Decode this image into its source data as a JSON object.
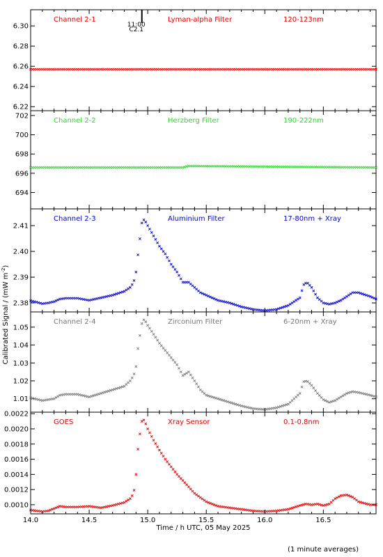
{
  "chart_data": {
    "type": "scatter",
    "xlabel": "Time / h UTC, 05 May 2025",
    "ylabel": "Calibrated Signal / (mW m",
    "ylabel_sup": "-2",
    "ylabel_close": ")",
    "footnote": "(1 minute averages)",
    "xlim": [
      14.0,
      16.95
    ],
    "xticks": [
      {
        "v": 14.0,
        "t": "14.0"
      },
      {
        "v": 14.5,
        "t": "14.5"
      },
      {
        "v": 15.0,
        "t": "15.0"
      },
      {
        "v": 15.5,
        "t": "15.5"
      },
      {
        "v": 16.0,
        "t": "16.0"
      },
      {
        "v": 16.5,
        "t": "16.5"
      }
    ],
    "time_marker": {
      "x": 14.95,
      "label1": "11:00",
      "label2": "C2.1"
    },
    "panels": [
      {
        "channel": "Channel 2-1",
        "filter": "Lyman-alpha Filter",
        "band": "120-123nm",
        "color": "#e00000",
        "ylim": [
          6.216,
          6.316
        ],
        "yticks": [
          {
            "v": 6.22,
            "t": "6.22"
          },
          {
            "v": 6.24,
            "t": "6.24"
          },
          {
            "v": 6.26,
            "t": "6.26"
          },
          {
            "v": 6.28,
            "t": "6.28"
          },
          {
            "v": 6.3,
            "t": "6.30"
          }
        ],
        "series": {
          "x": [
            14.0,
            16.95
          ],
          "y": [
            6.257,
            6.257
          ]
        }
      },
      {
        "channel": "Channel 2-2",
        "filter": "Herzberg Filter",
        "band": "190-222nm",
        "color": "#22dd22",
        "ylim": [
          692.3,
          702.5
        ],
        "yticks": [
          {
            "v": 694,
            "t": "694"
          },
          {
            "v": 696,
            "t": "696"
          },
          {
            "v": 698,
            "t": "698"
          },
          {
            "v": 700,
            "t": "700"
          },
          {
            "v": 702,
            "t": "702"
          }
        ],
        "series": {
          "x": [
            14.0,
            14.25,
            15.3,
            15.35,
            16.95
          ],
          "y": [
            696.6,
            696.6,
            696.6,
            696.75,
            696.6
          ]
        }
      },
      {
        "channel": "Channel 2-3",
        "filter": "Aluminium Filter",
        "band": "17-80nm + Xray",
        "color": "#0000cc",
        "ylim": [
          2.3765,
          2.4165
        ],
        "yticks": [
          {
            "v": 2.38,
            "t": "2.38"
          },
          {
            "v": 2.39,
            "t": "2.39"
          },
          {
            "v": 2.4,
            "t": "2.40"
          },
          {
            "v": 2.41,
            "t": "2.41"
          }
        ],
        "series": {
          "x": [
            14.0,
            14.05,
            14.1,
            14.15,
            14.2,
            14.25,
            14.3,
            14.4,
            14.5,
            14.6,
            14.7,
            14.8,
            14.85,
            14.88,
            14.9,
            14.92,
            14.95,
            14.97,
            15.0,
            15.05,
            15.1,
            15.15,
            15.2,
            15.25,
            15.3,
            15.35,
            15.4,
            15.45,
            15.5,
            15.6,
            15.7,
            15.8,
            15.9,
            16.0,
            16.1,
            16.2,
            16.3,
            16.33,
            16.36,
            16.4,
            16.45,
            16.5,
            16.55,
            16.6,
            16.65,
            16.7,
            16.75,
            16.8,
            16.9,
            16.95
          ],
          "y": [
            2.3808,
            2.3803,
            2.3797,
            2.38,
            2.3805,
            2.3815,
            2.3818,
            2.3818,
            2.381,
            2.382,
            2.383,
            2.3845,
            2.386,
            2.388,
            2.392,
            2.4,
            2.411,
            2.4125,
            2.41,
            2.406,
            2.402,
            2.399,
            2.395,
            2.392,
            2.388,
            2.388,
            2.386,
            2.384,
            2.383,
            2.381,
            2.38,
            2.3785,
            2.3775,
            2.377,
            2.3775,
            2.379,
            2.382,
            2.387,
            2.388,
            2.386,
            2.382,
            2.38,
            2.3795,
            2.38,
            2.381,
            2.3825,
            2.384,
            2.384,
            2.3825,
            2.3815
          ]
        }
      },
      {
        "channel": "Channel 2-4",
        "filter": "Zirconium Filter",
        "band": "6-20nm + Xray",
        "color": "#777777",
        "ylim": [
          1.0025,
          1.0585
        ],
        "yticks": [
          {
            "v": 1.01,
            "t": "1.01"
          },
          {
            "v": 1.02,
            "t": "1.02"
          },
          {
            "v": 1.03,
            "t": "1.03"
          },
          {
            "v": 1.04,
            "t": "1.04"
          },
          {
            "v": 1.05,
            "t": "1.05"
          }
        ],
        "series": {
          "x": [
            14.0,
            14.1,
            14.2,
            14.25,
            14.3,
            14.4,
            14.5,
            14.6,
            14.7,
            14.8,
            14.85,
            14.88,
            14.9,
            14.92,
            14.95,
            14.97,
            15.0,
            15.05,
            15.1,
            15.15,
            15.2,
            15.25,
            15.3,
            15.35,
            15.4,
            15.45,
            15.5,
            15.6,
            15.7,
            15.8,
            15.9,
            16.0,
            16.1,
            16.2,
            16.3,
            16.33,
            16.36,
            16.4,
            16.45,
            16.5,
            16.55,
            16.6,
            16.65,
            16.7,
            16.75,
            16.8,
            16.9,
            16.95
          ],
          "y": [
            1.0105,
            1.009,
            1.01,
            1.012,
            1.0125,
            1.0125,
            1.011,
            1.013,
            1.015,
            1.017,
            1.02,
            1.023,
            1.028,
            1.04,
            1.052,
            1.0545,
            1.051,
            1.046,
            1.041,
            1.037,
            1.033,
            1.029,
            1.023,
            1.025,
            1.02,
            1.015,
            1.012,
            1.01,
            1.008,
            1.006,
            1.0045,
            1.004,
            1.005,
            1.007,
            1.013,
            1.0195,
            1.02,
            1.0175,
            1.013,
            1.0095,
            1.008,
            1.009,
            1.011,
            1.013,
            1.014,
            1.0135,
            1.012,
            1.011
          ]
        }
      },
      {
        "channel": "GOES",
        "filter": "Xray Sensor",
        "band": "0.1-0.8nm",
        "color": "#e00000",
        "ylim": [
          0.00088,
          0.00222
        ],
        "yticks": [
          {
            "v": 0.001,
            "t": "0.0010"
          },
          {
            "v": 0.0012,
            "t": "0.0012"
          },
          {
            "v": 0.0014,
            "t": "0.0014"
          },
          {
            "v": 0.0016,
            "t": "0.0016"
          },
          {
            "v": 0.0018,
            "t": "0.0018"
          },
          {
            "v": 0.002,
            "t": "0.0020"
          },
          {
            "v": 0.0022,
            "t": "0.0022"
          }
        ],
        "series": {
          "x": [
            14.0,
            14.1,
            14.15,
            14.2,
            14.25,
            14.3,
            14.4,
            14.5,
            14.6,
            14.7,
            14.8,
            14.85,
            14.88,
            14.9,
            14.92,
            14.95,
            14.97,
            15.0,
            15.05,
            15.1,
            15.15,
            15.2,
            15.25,
            15.3,
            15.4,
            15.5,
            15.6,
            15.7,
            15.8,
            15.9,
            16.0,
            16.1,
            16.2,
            16.3,
            16.35,
            16.4,
            16.45,
            16.5,
            16.55,
            16.6,
            16.65,
            16.7,
            16.75,
            16.8,
            16.9,
            16.95
          ],
          "y": [
            0.00093,
            0.00091,
            0.00092,
            0.00095,
            0.00098,
            0.00097,
            0.00097,
            0.00098,
            0.00096,
            0.00099,
            0.00103,
            0.00108,
            0.00115,
            0.0014,
            0.0018,
            0.0021,
            0.00212,
            0.002,
            0.00185,
            0.00172,
            0.0016,
            0.0015,
            0.0014,
            0.00132,
            0.00115,
            0.00104,
            0.00098,
            0.00096,
            0.00094,
            0.00092,
            0.00091,
            0.00092,
            0.00094,
            0.00099,
            0.00101,
            0.001,
            0.00101,
            0.00099,
            0.00101,
            0.00108,
            0.00112,
            0.00113,
            0.0011,
            0.00104,
            0.001,
            0.001
          ]
        }
      }
    ]
  }
}
